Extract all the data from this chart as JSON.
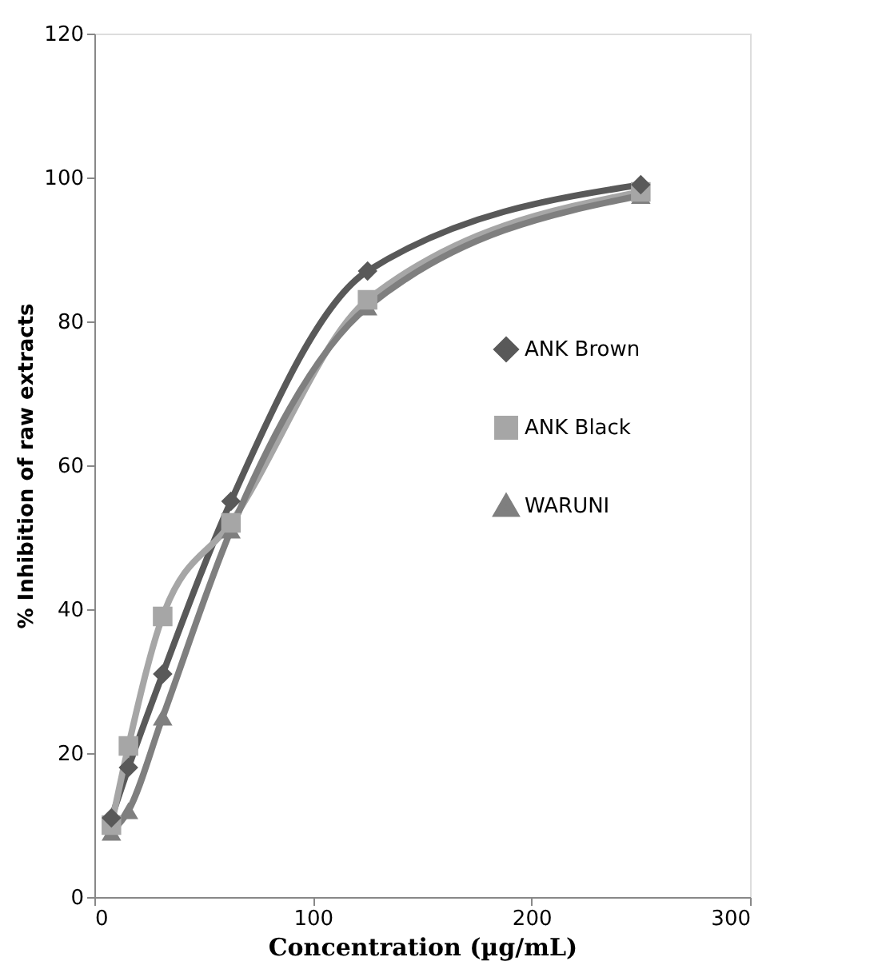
{
  "chart_data": {
    "type": "line",
    "xlabel": "Concentration  (µg/mL)",
    "ylabel": "% Inhibition of raw  extracts",
    "x": [
      7.8,
      15.6,
      31.25,
      62.5,
      125,
      250
    ],
    "series": [
      {
        "name": "ANK Brown",
        "color": "#595959",
        "marker": "diamond",
        "values": [
          11,
          18,
          31,
          55,
          87,
          99
        ]
      },
      {
        "name": "ANK Black",
        "color": "#a6a6a6",
        "marker": "square",
        "values": [
          10,
          21,
          39,
          52,
          83,
          98
        ]
      },
      {
        "name": "WARUNI",
        "color": "#7f7f7f",
        "marker": "triangle",
        "values": [
          9,
          12,
          25,
          51,
          82,
          97.5
        ]
      }
    ],
    "xlim": [
      0,
      300
    ],
    "xticks": [
      0,
      100,
      200,
      300
    ],
    "ylim": [
      0,
      120
    ],
    "yticks": [
      0,
      20,
      40,
      60,
      80,
      100,
      120
    ],
    "grid": false,
    "legend": "right",
    "line_style": "solid"
  }
}
